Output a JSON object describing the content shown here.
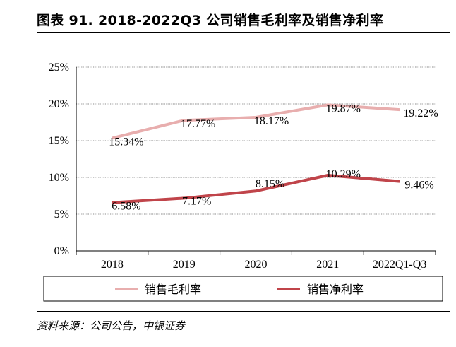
{
  "header": {
    "title": "图表 91. 2018-2022Q3 公司销售毛利率及销售净利率"
  },
  "footer": {
    "source": "资料来源：公司公告，中银证券"
  },
  "chart_data": {
    "type": "line",
    "categories": [
      "2018",
      "2019",
      "2020",
      "2021",
      "2022Q1-Q3"
    ],
    "ylim": [
      0,
      25
    ],
    "yticks": [
      0,
      5,
      10,
      15,
      20,
      25
    ],
    "ytick_labels": [
      "0%",
      "5%",
      "10%",
      "15%",
      "20%",
      "25%"
    ],
    "grid": true,
    "legend_position": "bottom",
    "series": [
      {
        "name": "销售毛利率",
        "color": "#e8aeae",
        "values": [
          15.34,
          17.77,
          18.17,
          19.87,
          19.22
        ],
        "labels": [
          "15.34%",
          "17.77%",
          "18.17%",
          "19.87%",
          "19.22%"
        ]
      },
      {
        "name": "销售净利率",
        "color": "#c0444a",
        "values": [
          6.58,
          7.17,
          8.15,
          10.29,
          9.46
        ],
        "labels": [
          "6.58%",
          "7.17%",
          "8.15%",
          "10.29%",
          "9.46%"
        ]
      }
    ]
  }
}
